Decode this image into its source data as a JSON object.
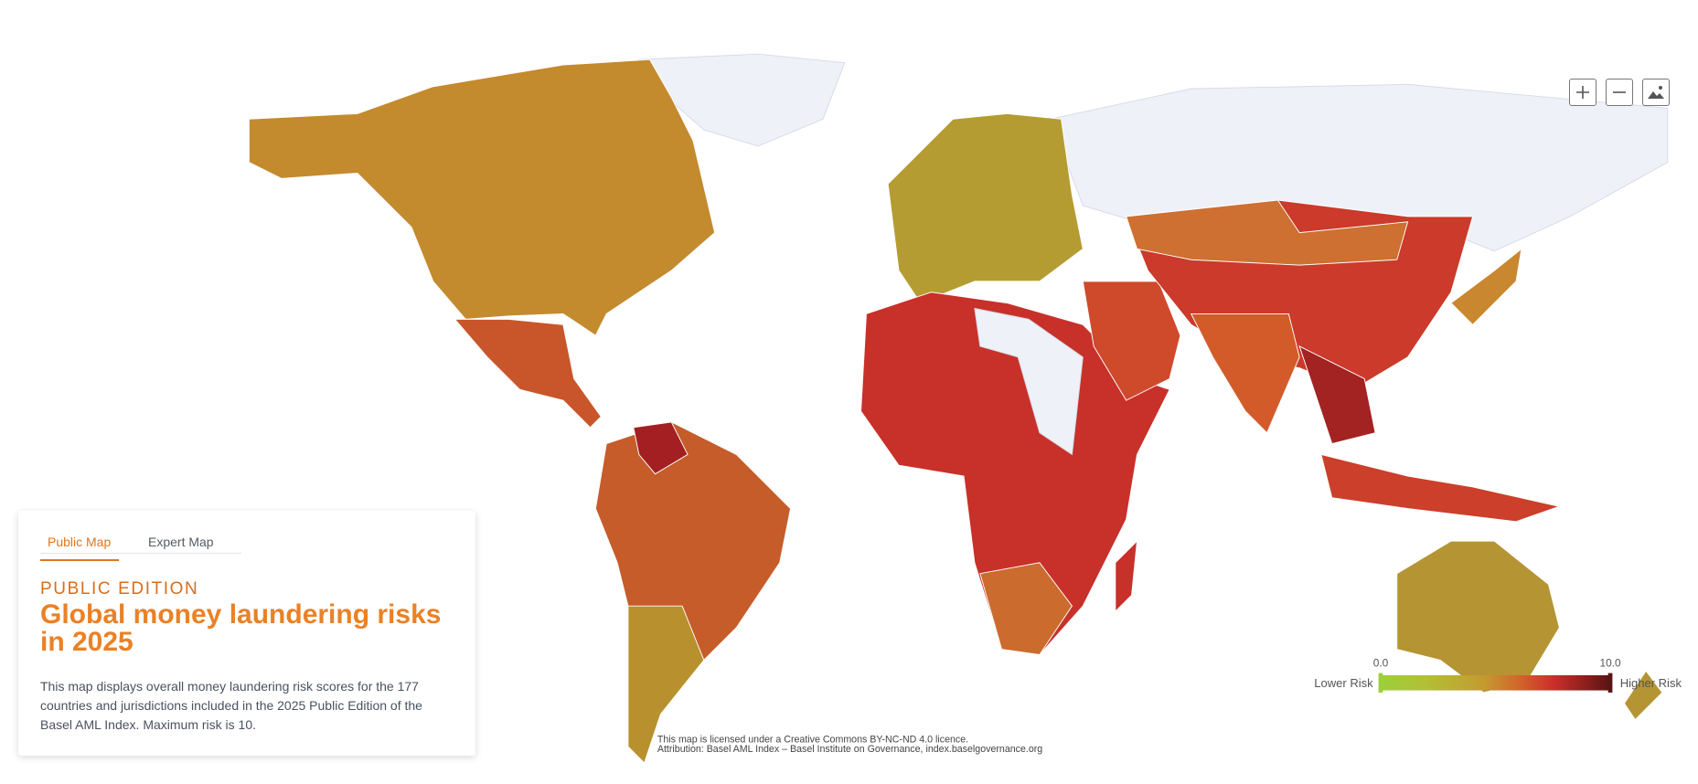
{
  "tabs": [
    "Public Map",
    "Expert Map"
  ],
  "panel": {
    "edition": "PUBLIC EDITION",
    "title": "Global money laundering risks in 2025",
    "description": "This map displays overall money laundering risk scores for the 177 countries and jurisdictions included in the 2025 Public Edition of the Basel AML Index. Maximum risk is 10."
  },
  "legend": {
    "min_label": "0.0",
    "max_label": "10.0",
    "low_text": "Lower Risk",
    "high_text": "Higher Risk"
  },
  "footer": {
    "licence": "This map is licensed under a Creative Commons BY-NC-ND 4.0 licence.",
    "attribution": "Attribution: Basel AML Index – Basel Institute on Governance, index.baselgovernance.org"
  }
}
